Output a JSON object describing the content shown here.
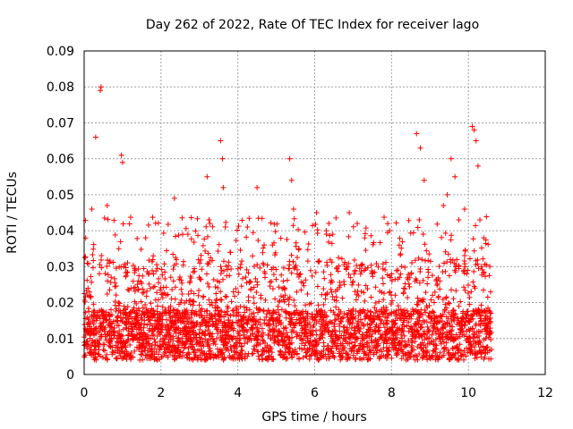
{
  "chart_data": {
    "type": "scatter",
    "title": "Day 262 of 2022, Rate Of TEC Index for receiver lago",
    "xlabel": "GPS time / hours",
    "ylabel": "ROTI / TECUs",
    "xlim": [
      0,
      12
    ],
    "ylim": [
      0,
      0.09
    ],
    "xticks": [
      "0",
      "2",
      "4",
      "6",
      "8",
      "10",
      "12"
    ],
    "yticks": [
      "0",
      "0.01",
      "0.02",
      "0.03",
      "0.04",
      "0.05",
      "0.06",
      "0.07",
      "0.08",
      "0.09"
    ],
    "grid": true,
    "marker": "+",
    "color": "#ff0000",
    "x_range_of_data": [
      0,
      10.6
    ],
    "series": [
      {
        "x": [
          0.05,
          0.15,
          0.25,
          0.35,
          0.45,
          0.55,
          0.65,
          0.75,
          0.85,
          0.95,
          1.05,
          1.15,
          1.25,
          1.35,
          1.45,
          1.55,
          1.65,
          1.75,
          1.85,
          1.95,
          2.05,
          2.15,
          2.25,
          2.35,
          2.45,
          2.55,
          2.65,
          2.75,
          2.85,
          2.95,
          3.05,
          3.15,
          3.25,
          3.35,
          3.45,
          3.55,
          3.65,
          3.75,
          3.85,
          3.95,
          4.05,
          4.15,
          4.25,
          4.35,
          4.45,
          4.55,
          4.65,
          4.75,
          4.85,
          4.95,
          5.05,
          5.15,
          5.25,
          5.35,
          5.45,
          5.55,
          5.65,
          5.75,
          5.85,
          5.95,
          6.05,
          6.15,
          6.25,
          6.35,
          6.45,
          6.55,
          6.65,
          6.75,
          6.85,
          6.95,
          7.05,
          7.15,
          7.25,
          7.35,
          7.45,
          7.55,
          7.65,
          7.75,
          7.85,
          7.95,
          8.05,
          8.15,
          8.25,
          8.35,
          8.45,
          8.55,
          8.65,
          8.75,
          8.85,
          8.95,
          9.05,
          9.15,
          9.25,
          9.35,
          9.45,
          9.55,
          9.65,
          9.75,
          9.85,
          9.95,
          10.05,
          10.15,
          10.25,
          10.35,
          10.45,
          10.55,
          0.3,
          0.42,
          0.44,
          0.6,
          0.97,
          1.0,
          2.35,
          3.2,
          3.25,
          3.55,
          3.6,
          3.62,
          4.5,
          5.35,
          5.4,
          5.45,
          6.05,
          6.9,
          7.9,
          7.95,
          8.65,
          8.75,
          8.85,
          9.35,
          9.45,
          9.55,
          9.65,
          9.75,
          10.1,
          10.15,
          10.2,
          10.25,
          10.3,
          0.2,
          0.1,
          0.9,
          1.6,
          1.8,
          2.7,
          3.8,
          4.9,
          6.3,
          7.3,
          8.2,
          9.9,
          10.4
        ],
        "y": [
          0.012,
          0.01,
          0.014,
          0.009,
          0.011,
          0.013,
          0.008,
          0.012,
          0.01,
          0.015,
          0.009,
          0.011,
          0.012,
          0.01,
          0.013,
          0.008,
          0.011,
          0.012,
          0.009,
          0.014,
          0.01,
          0.011,
          0.013,
          0.012,
          0.009,
          0.01,
          0.012,
          0.011,
          0.013,
          0.009,
          0.01,
          0.012,
          0.011,
          0.014,
          0.01,
          0.012,
          0.009,
          0.011,
          0.013,
          0.01,
          0.012,
          0.011,
          0.009,
          0.013,
          0.01,
          0.012,
          0.011,
          0.014,
          0.01,
          0.012,
          0.009,
          0.011,
          0.013,
          0.01,
          0.012,
          0.011,
          0.01,
          0.013,
          0.009,
          0.012,
          0.011,
          0.01,
          0.013,
          0.012,
          0.009,
          0.011,
          0.012,
          0.01,
          0.013,
          0.011,
          0.009,
          0.012,
          0.01,
          0.011,
          0.013,
          0.009,
          0.012,
          0.01,
          0.011,
          0.012,
          0.01,
          0.013,
          0.011,
          0.009,
          0.012,
          0.01,
          0.011,
          0.013,
          0.012,
          0.01,
          0.011,
          0.012,
          0.01,
          0.013,
          0.011,
          0.012,
          0.01,
          0.014,
          0.011,
          0.012,
          0.01,
          0.011,
          0.009,
          0.012,
          0.01,
          0.011,
          0.066,
          0.079,
          0.08,
          0.047,
          0.061,
          0.059,
          0.049,
          0.055,
          0.043,
          0.065,
          0.06,
          0.052,
          0.052,
          0.06,
          0.054,
          0.046,
          0.045,
          0.045,
          0.042,
          0.04,
          0.067,
          0.063,
          0.054,
          0.047,
          0.05,
          0.06,
          0.055,
          0.043,
          0.069,
          0.068,
          0.065,
          0.058,
          0.043,
          0.046,
          0.024,
          0.035,
          0.038,
          0.033,
          0.039,
          0.034,
          0.036,
          0.04,
          0.038,
          0.036,
          0.046,
          0.038
        ]
      }
    ]
  }
}
